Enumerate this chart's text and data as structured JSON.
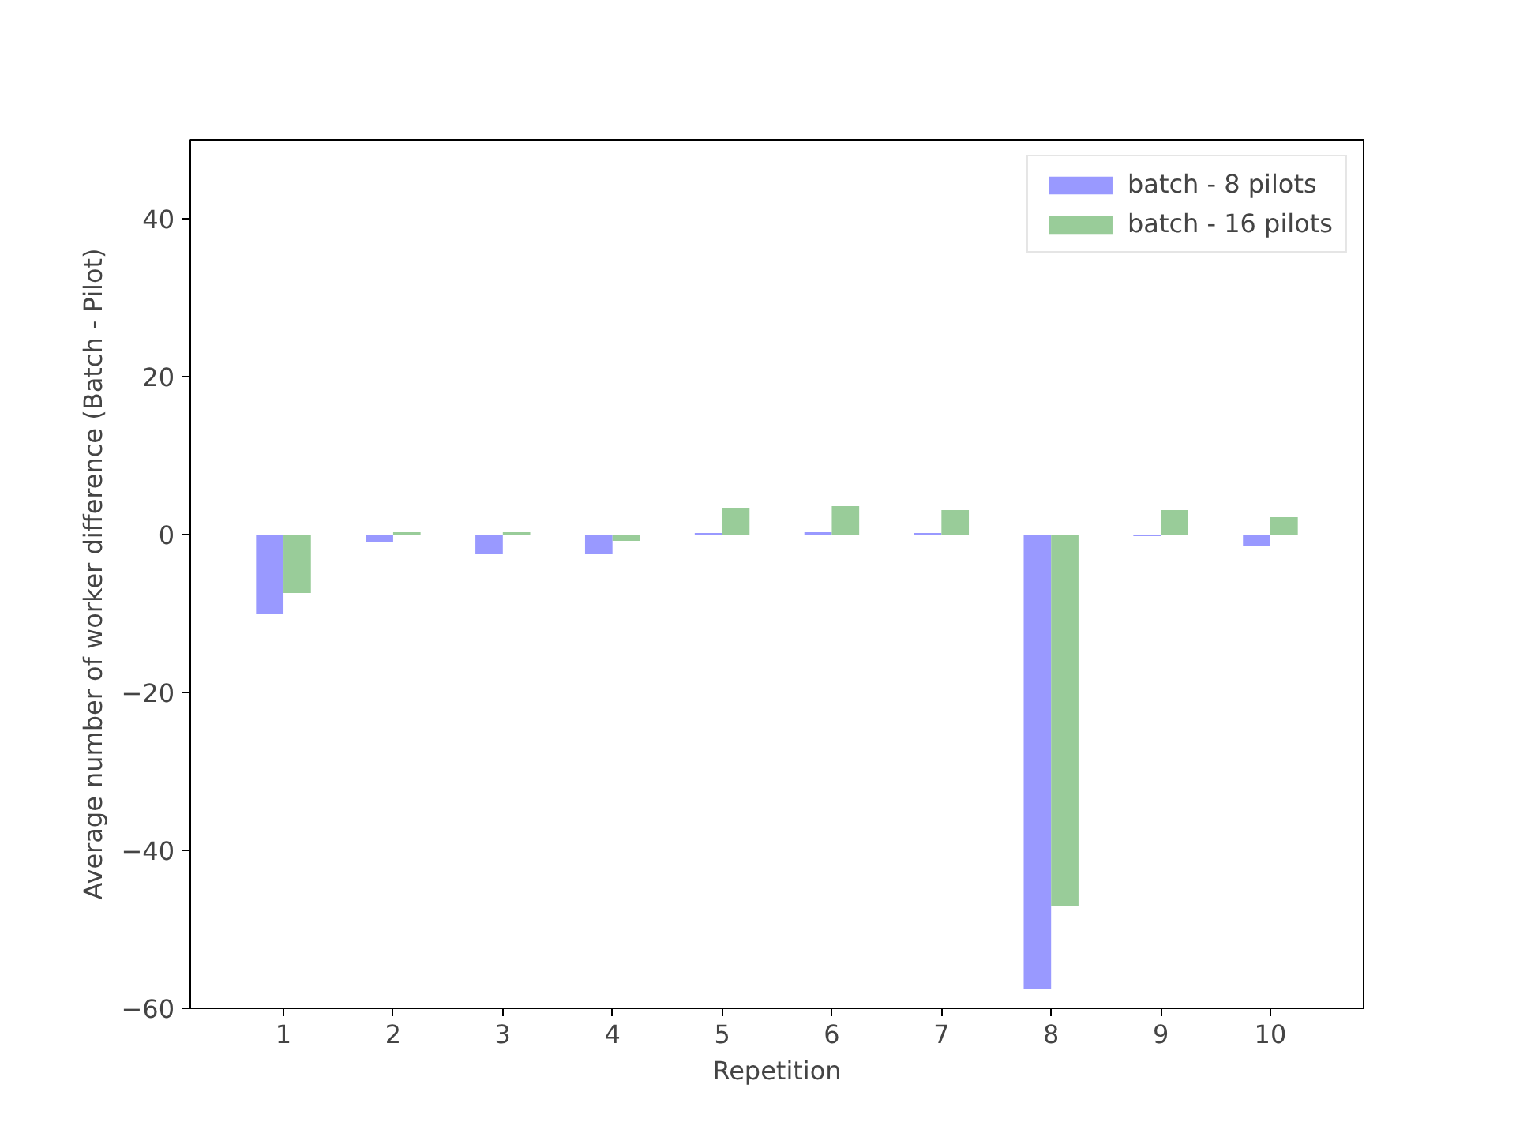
{
  "chart_data": {
    "type": "bar",
    "xlabel": "Repetition",
    "ylabel": "Average number of worker difference (Batch - Pilot)",
    "categories": [
      "1",
      "2",
      "3",
      "4",
      "5",
      "6",
      "7",
      "8",
      "9",
      "10"
    ],
    "series": [
      {
        "name": "batch - 8 pilots",
        "color": "#9999ff",
        "values": [
          -10,
          -1,
          -2.5,
          -2.5,
          0.2,
          0.3,
          0.2,
          -57.5,
          -0.2,
          -1.5
        ]
      },
      {
        "name": "batch - 16 pilots",
        "color": "#99cc99",
        "values": [
          -7.4,
          0.3,
          0.3,
          -0.8,
          3.4,
          3.6,
          3.1,
          -47,
          3.1,
          2.2
        ]
      }
    ],
    "ylim": [
      -60,
      50
    ],
    "yticks": [
      {
        "value": -60,
        "label": "−60"
      },
      {
        "value": -40,
        "label": "−40"
      },
      {
        "value": -20,
        "label": "−20"
      },
      0,
      20,
      40
    ],
    "legend": "top right",
    "grid": false
  }
}
